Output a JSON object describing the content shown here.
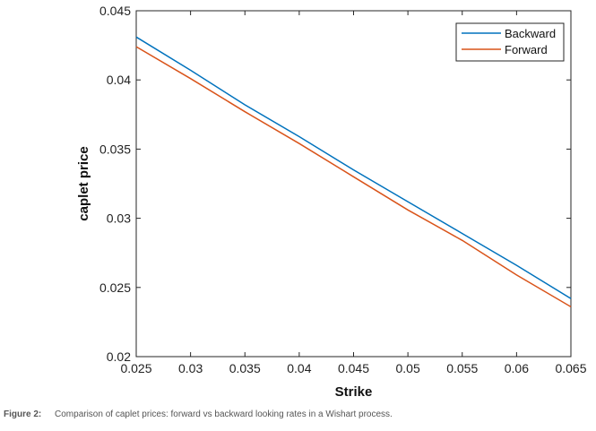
{
  "chart_data": {
    "type": "line",
    "xlabel": "Strike",
    "ylabel": "caplet price",
    "xlim": [
      0.025,
      0.065
    ],
    "ylim": [
      0.02,
      0.045
    ],
    "x_ticks": [
      "0.025",
      "0.03",
      "0.035",
      "0.04",
      "0.045",
      "0.05",
      "0.055",
      "0.06",
      "0.065"
    ],
    "y_ticks": [
      "0.02",
      "0.025",
      "0.03",
      "0.035",
      "0.04",
      "0.045"
    ],
    "grid": false,
    "legend_position": "top-right",
    "series": [
      {
        "name": "Backward",
        "color": "#0072BD",
        "x": [
          0.025,
          0.03,
          0.035,
          0.04,
          0.045,
          0.05,
          0.055,
          0.06,
          0.065
        ],
        "y": [
          0.0431,
          0.0407,
          0.0382,
          0.0359,
          0.0335,
          0.0312,
          0.0289,
          0.0266,
          0.0242
        ]
      },
      {
        "name": "Forward",
        "color": "#D95319",
        "x": [
          0.025,
          0.03,
          0.035,
          0.04,
          0.045,
          0.05,
          0.055,
          0.06,
          0.065
        ],
        "y": [
          0.0424,
          0.0401,
          0.0377,
          0.0354,
          0.033,
          0.0306,
          0.0284,
          0.0259,
          0.0236
        ]
      }
    ]
  },
  "caption": {
    "label": "Figure 2:",
    "text": "Comparison of caplet prices: forward vs backward looking rates in a Wishart process."
  }
}
